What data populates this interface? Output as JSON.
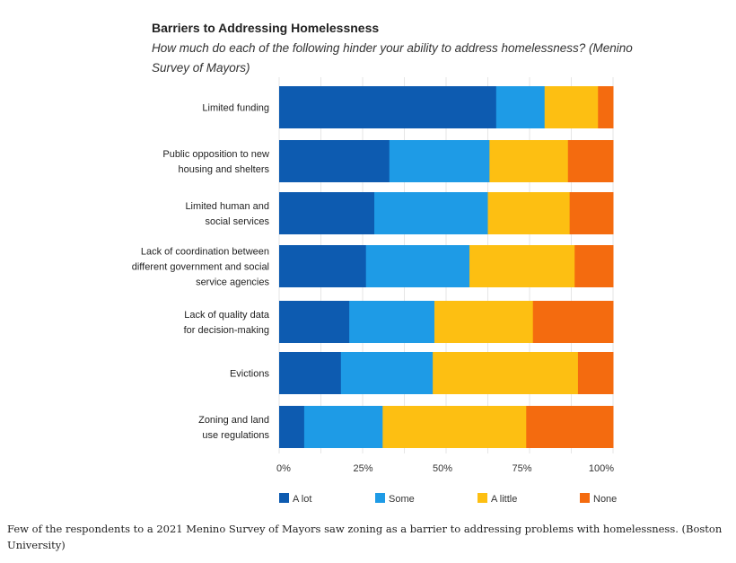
{
  "chart_data": {
    "type": "bar",
    "orientation": "horizontal",
    "stacked": true,
    "title": "Barriers to Addressing Homelessness",
    "subtitle": "How much do each of the following hinder your ability to address homelessness? (Menino Survey of Mayors)",
    "categories": [
      [
        "Limited funding"
      ],
      [
        "Public opposition to new",
        "housing and shelters"
      ],
      [
        "Limited human and",
        "social services"
      ],
      [
        "Lack of coordination between",
        "different government and social",
        "service agencies"
      ],
      [
        "Lack of quality data",
        "for decision-making"
      ],
      [
        "Evictions"
      ],
      [
        "Zoning and land",
        "use regulations"
      ]
    ],
    "series": [
      {
        "name": "A lot",
        "color": "#0d5bb0",
        "values": [
          65,
          33,
          28.5,
          26,
          21,
          18.5,
          7.5
        ]
      },
      {
        "name": "Some",
        "color": "#1e9be6",
        "values": [
          14.5,
          30,
          34,
          31,
          25.5,
          27.5,
          23.5
        ]
      },
      {
        "name": "A little",
        "color": "#fdbf12",
        "values": [
          16,
          23.5,
          24.5,
          31.5,
          29.5,
          43.5,
          43
        ]
      },
      {
        "name": "None",
        "color": "#f46b0f",
        "values": [
          4.5,
          13.5,
          13,
          11.5,
          24,
          10.5,
          26
        ]
      }
    ],
    "xlim": [
      0,
      100
    ],
    "xticks": [
      "0%",
      "25%",
      "50%",
      "75%",
      "100%"
    ],
    "grid": true,
    "legend_position": "bottom"
  },
  "caption": "Few of the respondents to a 2021 Menino Survey of Mayors saw zoning as a barrier to addressing problems with homelessness. (Boston University)"
}
